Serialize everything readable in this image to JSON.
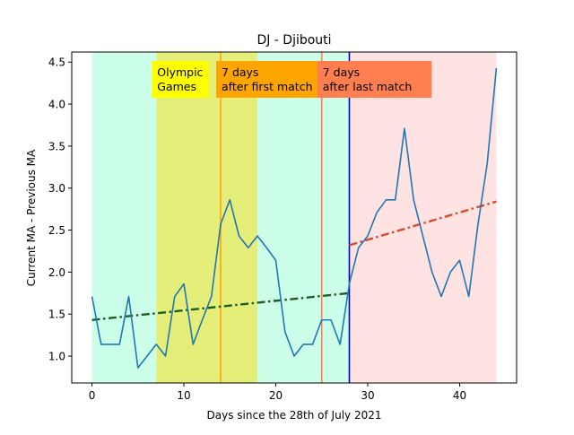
{
  "chart_data": {
    "type": "line",
    "title": "DJ - Djibouti",
    "xlabel": "Days since the 28th of July 2021",
    "ylabel": "Current MA - Previous MA",
    "xlim": [
      -2.2,
      46.2
    ],
    "ylim": [
      0.68,
      4.62
    ],
    "x_ticks": [
      0,
      10,
      20,
      30,
      40
    ],
    "y_ticks": [
      1.0,
      1.5,
      2.0,
      2.5,
      3.0,
      3.5,
      4.0,
      4.5
    ],
    "y_tick_labels": [
      "1.0",
      "1.5",
      "2.0",
      "2.5",
      "3.0",
      "3.5",
      "4.0",
      "4.5"
    ],
    "grid": false,
    "series": [
      {
        "color": "#1f77b4",
        "x": [
          0,
          1,
          2,
          3,
          4,
          5,
          6,
          7,
          8,
          9,
          10,
          11,
          12,
          13,
          14,
          15,
          16,
          17,
          18,
          19,
          20,
          21,
          22,
          23,
          24,
          25,
          26,
          27,
          28,
          29,
          30,
          31,
          32,
          33,
          34,
          35,
          36,
          37,
          38,
          39,
          40,
          41,
          42,
          43,
          44
        ],
        "y": [
          1.71,
          1.14,
          1.14,
          1.14,
          1.71,
          0.86,
          1.0,
          1.14,
          1.0,
          1.71,
          1.86,
          1.14,
          1.43,
          1.71,
          2.57,
          2.86,
          2.43,
          2.29,
          2.43,
          2.29,
          2.14,
          1.29,
          1.0,
          1.14,
          1.14,
          1.43,
          1.43,
          1.14,
          1.86,
          2.29,
          2.43,
          2.71,
          2.86,
          2.86,
          3.71,
          2.86,
          2.43,
          2.0,
          1.71,
          2.0,
          2.14,
          1.71,
          2.57,
          3.29,
          4.43
        ]
      }
    ],
    "trend_lines": [
      {
        "color": "#1b5e20",
        "style": "dash-dot",
        "x": [
          0,
          28
        ],
        "y": [
          1.43,
          1.75
        ]
      },
      {
        "color": "#d84a2c",
        "style": "dash-dot",
        "x": [
          28,
          44
        ],
        "y": [
          2.32,
          2.84
        ]
      }
    ],
    "shaded_regions": [
      {
        "x0": 0,
        "x1": 7,
        "color": "#ccffea"
      },
      {
        "x0": 7,
        "x1": 18,
        "color": "#e6ee7a"
      },
      {
        "x0": 18,
        "x1": 28,
        "color": "#ccffea"
      },
      {
        "x0": 28,
        "x1": 44,
        "color": "#ffe3e3"
      }
    ],
    "vertical_lines": [
      {
        "x": 14,
        "color": "#ffa500"
      },
      {
        "x": 25,
        "color": "#ff7f50"
      },
      {
        "x": 28,
        "color": "#0000cc"
      }
    ],
    "annotations": [
      {
        "lines": [
          "Olympic",
          "Games"
        ],
        "x": 7,
        "color": "#ffff00"
      },
      {
        "lines": [
          "7 days",
          "after first match"
        ],
        "x": 14,
        "color": "#ffa500"
      },
      {
        "lines": [
          "7 days",
          "after last match"
        ],
        "x": 25,
        "color": "#ff7f50"
      }
    ]
  }
}
